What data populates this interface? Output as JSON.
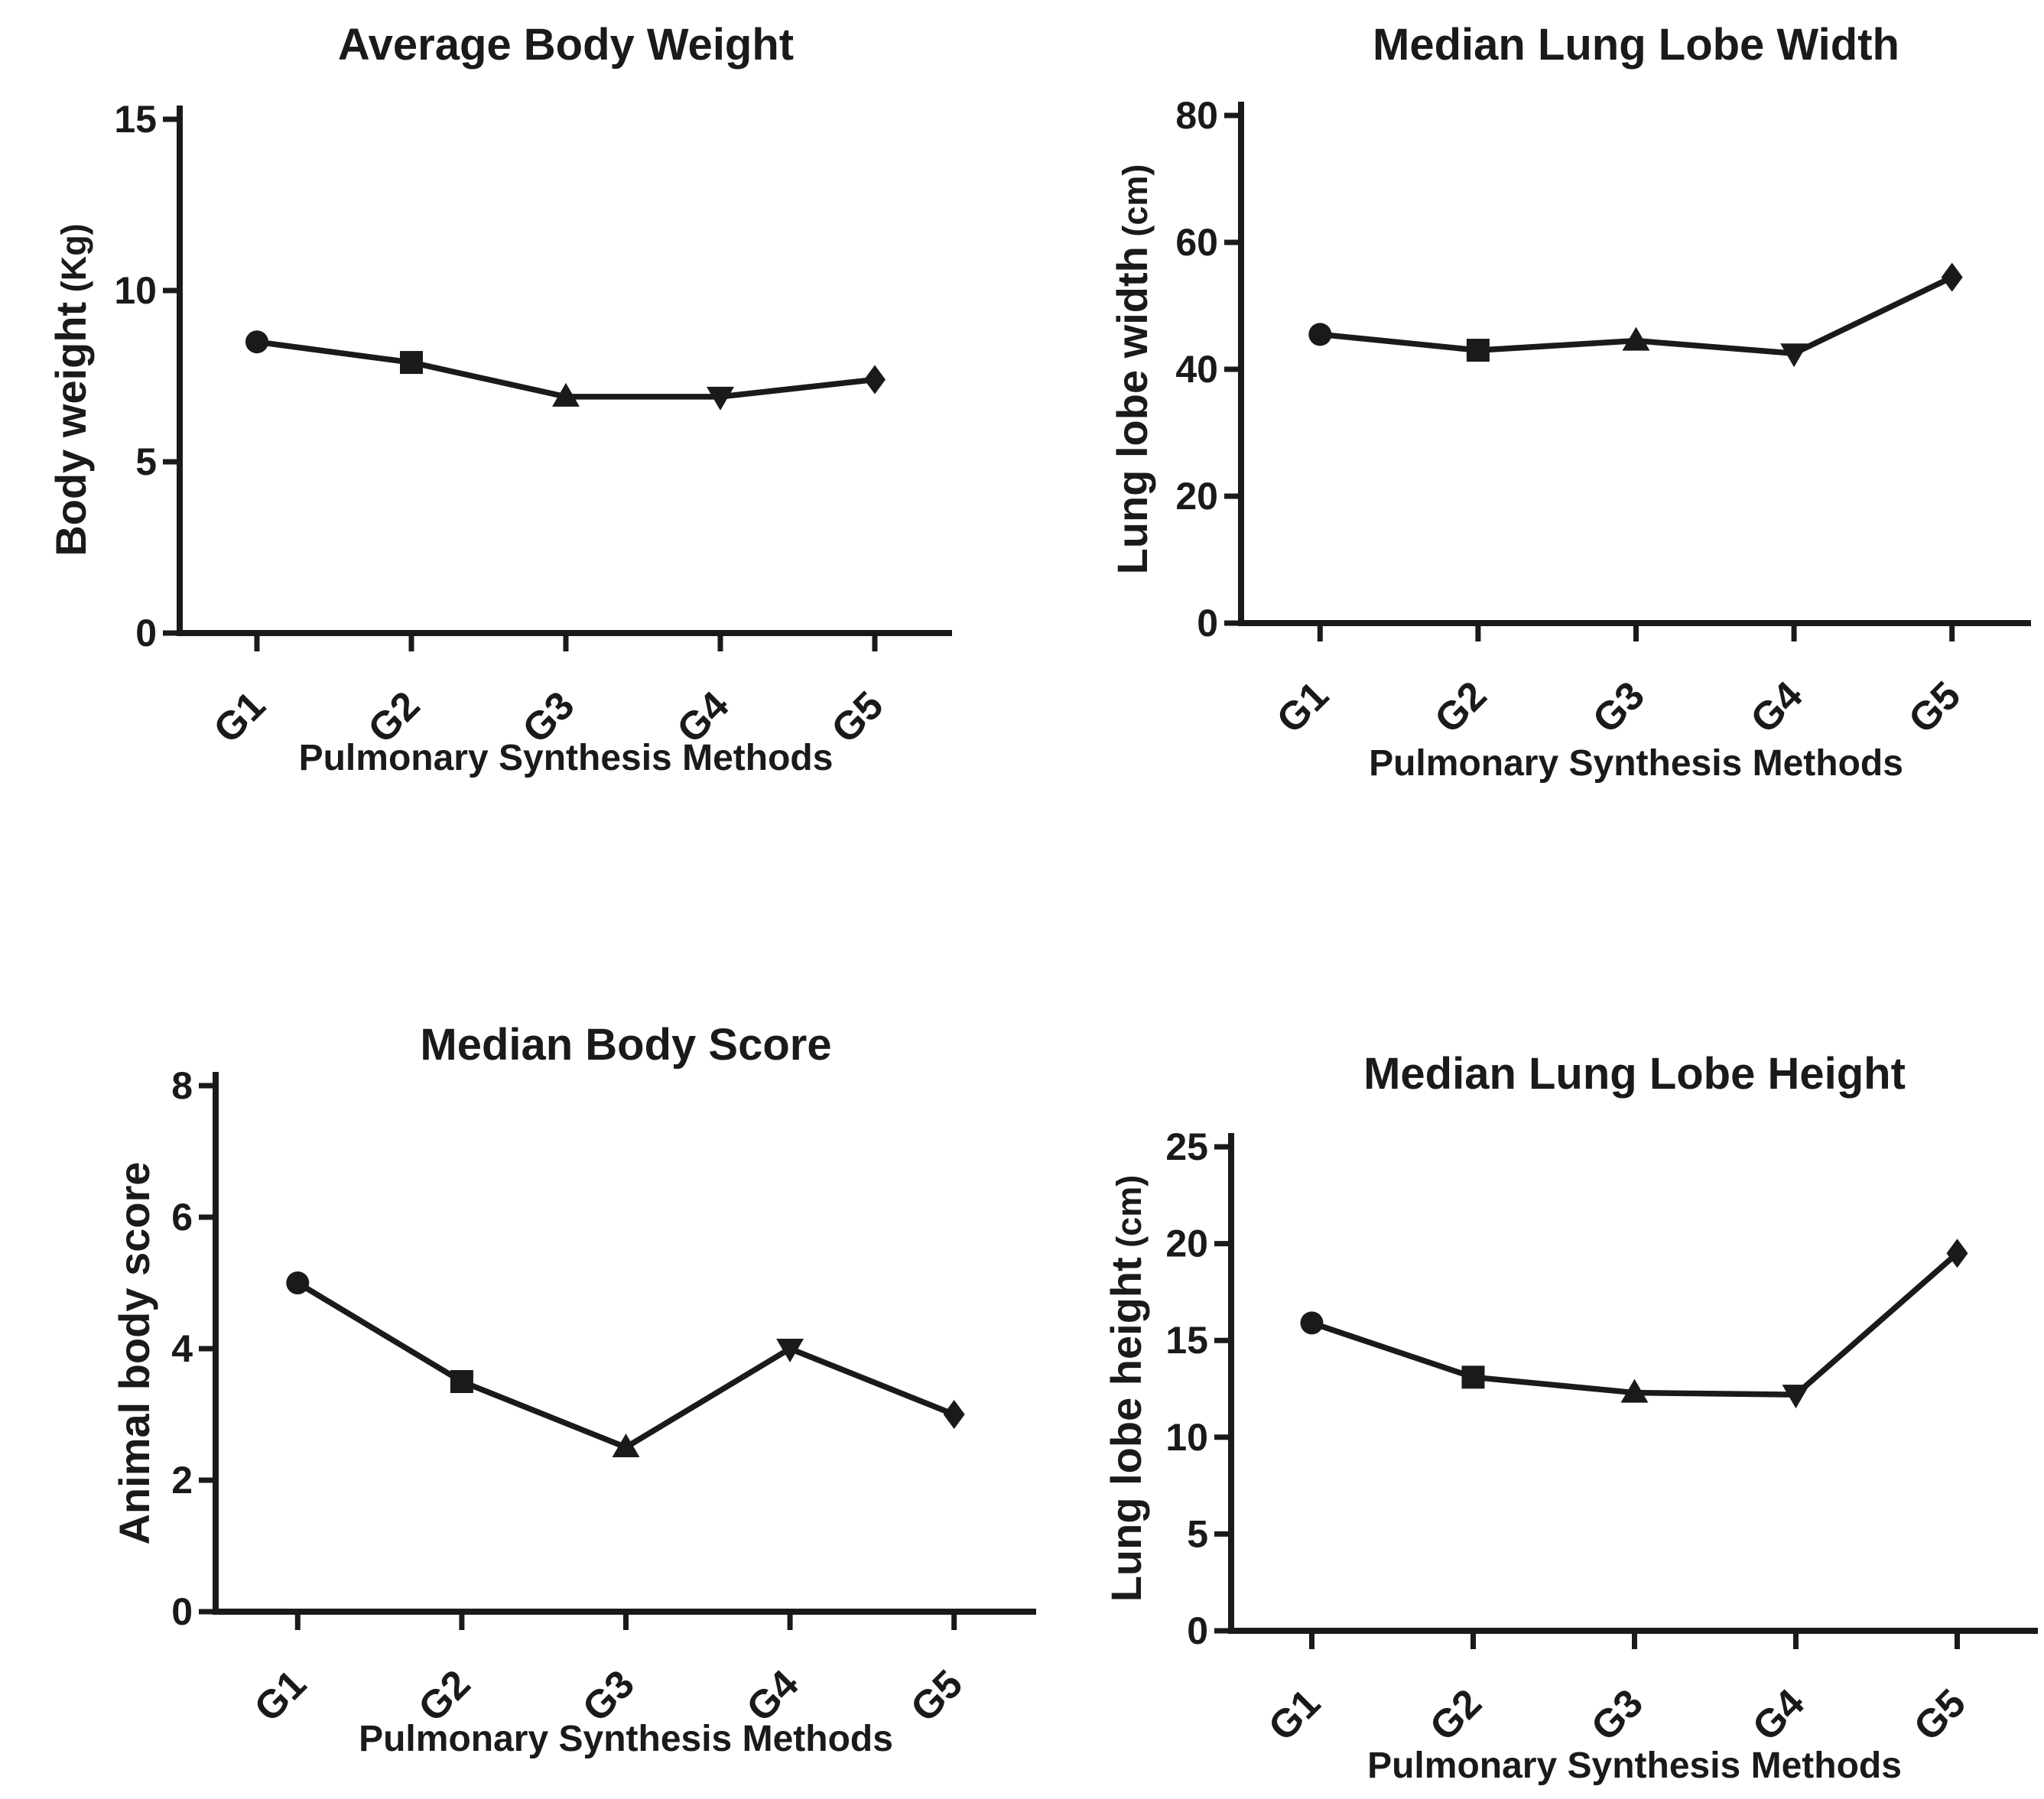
{
  "page": {
    "background": "#ffffff",
    "ink": "#1a1a1a"
  },
  "figure": {
    "rows": 2,
    "cols": 2
  },
  "chart_data": [
    {
      "id": "average-body-weight",
      "type": "line",
      "title": "Average Body Weight",
      "xlabel": "Pulmonary Synthesis Methods",
      "ylabel": "Body weight",
      "ylabel_unit": "(Kg)",
      "categories": [
        "G1",
        "G2",
        "G3",
        "G4",
        "G5"
      ],
      "values": [
        8.5,
        7.9,
        6.9,
        6.9,
        7.4
      ],
      "point_markers": [
        "circle",
        "square",
        "triangle-up",
        "triangle-down",
        "diamond"
      ],
      "ylim": [
        0,
        15
      ],
      "yticks": [
        0,
        5,
        10,
        15
      ],
      "grid": false,
      "legend": "none"
    },
    {
      "id": "median-lung-lobe-width",
      "type": "line",
      "title": "Median Lung Lobe Width",
      "xlabel": "Pulmonary Synthesis Methods",
      "ylabel": "Lung lobe width",
      "ylabel_unit": "(cm)",
      "categories": [
        "G1",
        "G2",
        "G3",
        "G4",
        "G5"
      ],
      "values": [
        45.5,
        43,
        44.5,
        42.5,
        54.5
      ],
      "point_markers": [
        "circle",
        "square",
        "triangle-up",
        "triangle-down",
        "diamond"
      ],
      "ylim": [
        0,
        80
      ],
      "yticks": [
        0,
        20,
        40,
        60,
        80
      ],
      "grid": false,
      "legend": "none"
    },
    {
      "id": "median-body-score",
      "type": "line",
      "title": "Median Body Score",
      "xlabel": "Pulmonary Synthesis Methods",
      "ylabel": "Animal body score",
      "ylabel_unit": "",
      "categories": [
        "G1",
        "G2",
        "G3",
        "G4",
        "G5"
      ],
      "values": [
        5.0,
        3.5,
        2.5,
        4.0,
        3.0
      ],
      "point_markers": [
        "circle",
        "square",
        "triangle-up",
        "triangle-down",
        "diamond"
      ],
      "ylim": [
        0,
        8
      ],
      "yticks": [
        0,
        2,
        4,
        6,
        8
      ],
      "grid": false,
      "legend": "none"
    },
    {
      "id": "median-lung-lobe-height",
      "type": "line",
      "title": "Median Lung Lobe Height",
      "xlabel": "Pulmonary Synthesis Methods",
      "ylabel": "Lung lobe height",
      "ylabel_unit": "(cm)",
      "categories": [
        "G1",
        "G2",
        "G3",
        "G4",
        "G5"
      ],
      "values": [
        15.9,
        13.1,
        12.3,
        12.2,
        19.5
      ],
      "point_markers": [
        "circle",
        "square",
        "triangle-up",
        "triangle-down",
        "diamond"
      ],
      "ylim": [
        0,
        25
      ],
      "yticks": [
        0,
        5,
        10,
        15,
        20,
        25
      ],
      "grid": false,
      "legend": "none"
    }
  ]
}
